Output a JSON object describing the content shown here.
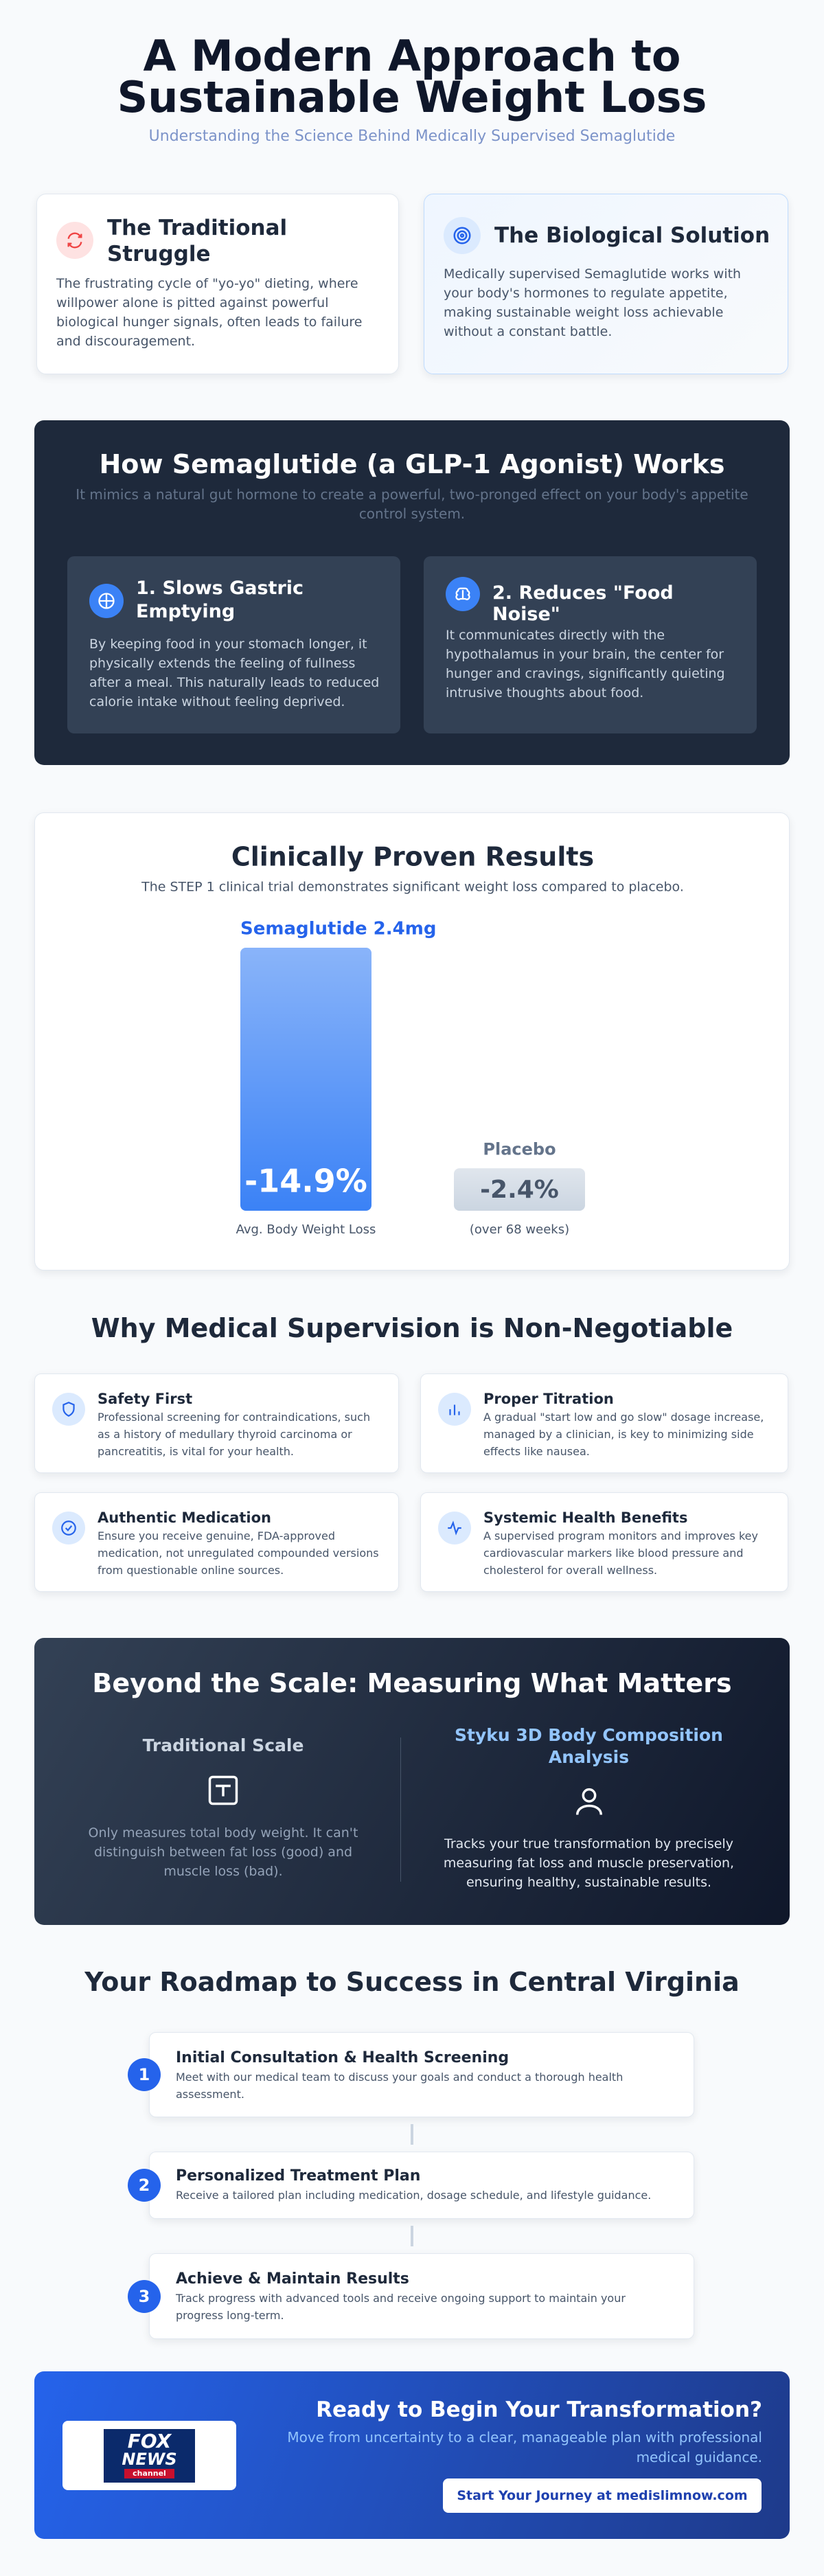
{
  "header": {
    "title": "A Modern Approach to Sustainable Weight Loss",
    "subtitle": "Understanding the Science Behind Medically Supervised Semaglutide"
  },
  "intro_cards": [
    {
      "title": "The Traditional Struggle",
      "text": "The frustrating cycle of \"yo-yo\" dieting, where willpower alone is pitted against powerful biological hunger signals, often leads to failure and discouragement."
    },
    {
      "title": "The Biological Solution",
      "text": "Medically supervised Semaglutide works with your body's hormones to regulate appetite, making sustainable weight loss achievable without a constant battle."
    }
  ],
  "mechanism": {
    "title": "How Semaglutide (a GLP-1 Agonist) Works",
    "subtitle": "It mimics a natural gut hormone to create a powerful, two-pronged effect on your body's appetite control system.",
    "cards": [
      {
        "title": "1. Slows Gastric Emptying",
        "text": "By keeping food in your stomach longer, it physically extends the feeling of fullness after a meal. This naturally leads to reduced calorie intake without feeling deprived."
      },
      {
        "title": "2. Reduces \"Food Noise\"",
        "text": "It communicates directly with the hypothalamus in your brain, the center for hunger and cravings, significantly quieting intrusive thoughts about food."
      }
    ]
  },
  "chart_data": {
    "type": "bar",
    "title": "Clinically Proven Results",
    "subtitle": "The STEP 1 clinical trial demonstrates significant weight loss compared to placebo.",
    "categories": [
      "Semaglutide 2.4mg",
      "Placebo"
    ],
    "values": [
      -14.9,
      -2.4
    ],
    "value_labels": [
      "-14.9%",
      "-2.4%"
    ],
    "colors": [
      "#3b82f6",
      "#cbd5e1"
    ],
    "notes": [
      "Avg. Body Weight Loss",
      "(over 68 weeks)"
    ]
  },
  "supervision": {
    "title": "Why Medical Supervision is Non-Negotiable",
    "items": [
      {
        "title": "Safety First",
        "text": "Professional screening for contraindications, such as a history of medullary thyroid carcinoma or pancreatitis, is vital for your health."
      },
      {
        "title": "Proper Titration",
        "text": "A gradual \"start low and go slow\" dosage increase, managed by a clinician, is key to minimizing side effects like nausea."
      },
      {
        "title": "Authentic Medication",
        "text": "Ensure you receive genuine, FDA-approved medication, not unregulated compounded versions from questionable online sources."
      },
      {
        "title": "Systemic Health Benefits",
        "text": "A supervised program monitors and improves key cardiovascular markers like blood pressure and cholesterol for overall wellness."
      }
    ]
  },
  "beyond": {
    "title": "Beyond the Scale: Measuring What Matters",
    "columns": [
      {
        "title": "Traditional Scale",
        "text": "Only measures total body weight. It can't distinguish between fat loss (good) and muscle loss (bad)."
      },
      {
        "title": "Styku 3D Body Composition Analysis",
        "text": "Tracks your true transformation by precisely measuring fat loss and muscle preservation, ensuring healthy, sustainable results."
      }
    ]
  },
  "roadmap": {
    "title": "Your Roadmap to Success in Central Virginia",
    "steps": [
      {
        "number": 1,
        "title": "Initial Consultation & Health Screening",
        "text": "Meet with our medical team to discuss your goals and conduct a thorough health assessment."
      },
      {
        "number": 2,
        "title": "Personalized Treatment Plan",
        "text": "Receive a tailored plan including medication, dosage schedule, and lifestyle guidance."
      },
      {
        "number": 3,
        "title": "Achieve & Maintain Results",
        "text": "Track progress with advanced tools and receive ongoing support to maintain your progress long-term."
      }
    ]
  },
  "cta": {
    "title": "Ready to Begin Your Transformation?",
    "text": "Move from uncertainty to a clear, manageable plan with professional medical guidance.",
    "button": "Start Your Journey at medislimnow.com",
    "logo": {
      "line1": "FOX",
      "line2": "NEWS",
      "line3": "channel"
    }
  }
}
